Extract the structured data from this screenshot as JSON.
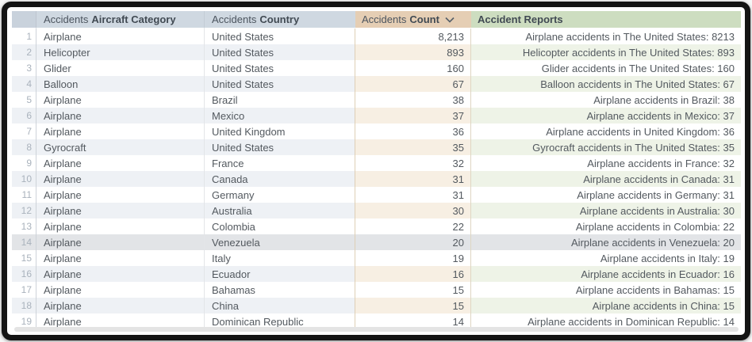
{
  "table": {
    "headers": {
      "rownum": {
        "label": ""
      },
      "category": {
        "prefix": "Accidents",
        "bold": "Aircraft Category"
      },
      "country": {
        "prefix": "Accidents",
        "bold": "Country"
      },
      "count": {
        "prefix": "Accidents",
        "bold": "Count",
        "sort": "descending"
      },
      "reports": {
        "bold": "Accident Reports"
      }
    },
    "highlighted_row_number": 14,
    "rows": [
      {
        "num": 1,
        "category": "Airplane",
        "country": "United States",
        "count": "8,213",
        "report": "Airplane accidents in The United States: 8213"
      },
      {
        "num": 2,
        "category": "Helicopter",
        "country": "United States",
        "count": "893",
        "report": "Helicopter accidents in The United States: 893"
      },
      {
        "num": 3,
        "category": "Glider",
        "country": "United States",
        "count": "160",
        "report": "Glider accidents in The United States: 160"
      },
      {
        "num": 4,
        "category": "Balloon",
        "country": "United States",
        "count": "67",
        "report": "Balloon accidents in The United States: 67"
      },
      {
        "num": 5,
        "category": "Airplane",
        "country": "Brazil",
        "count": "38",
        "report": "Airplane accidents in Brazil: 38"
      },
      {
        "num": 6,
        "category": "Airplane",
        "country": "Mexico",
        "count": "37",
        "report": "Airplane accidents in Mexico: 37"
      },
      {
        "num": 7,
        "category": "Airplane",
        "country": "United Kingdom",
        "count": "36",
        "report": "Airplane accidents in United Kingdom: 36"
      },
      {
        "num": 8,
        "category": "Gyrocraft",
        "country": "United States",
        "count": "35",
        "report": "Gyrocraft accidents in The United States: 35"
      },
      {
        "num": 9,
        "category": "Airplane",
        "country": "France",
        "count": "32",
        "report": "Airplane accidents in France: 32"
      },
      {
        "num": 10,
        "category": "Airplane",
        "country": "Canada",
        "count": "31",
        "report": "Airplane accidents in Canada: 31"
      },
      {
        "num": 11,
        "category": "Airplane",
        "country": "Germany",
        "count": "31",
        "report": "Airplane accidents in Germany: 31"
      },
      {
        "num": 12,
        "category": "Airplane",
        "country": "Australia",
        "count": "30",
        "report": "Airplane accidents in Australia: 30"
      },
      {
        "num": 13,
        "category": "Airplane",
        "country": "Colombia",
        "count": "22",
        "report": "Airplane accidents in Colombia: 22"
      },
      {
        "num": 14,
        "category": "Airplane",
        "country": "Venezuela",
        "count": "20",
        "report": "Airplane accidents in Venezuela: 20"
      },
      {
        "num": 15,
        "category": "Airplane",
        "country": "Italy",
        "count": "19",
        "report": "Airplane accidents in Italy: 19"
      },
      {
        "num": 16,
        "category": "Airplane",
        "country": "Ecuador",
        "count": "16",
        "report": "Airplane accidents in Ecuador: 16"
      },
      {
        "num": 17,
        "category": "Airplane",
        "country": "Bahamas",
        "count": "15",
        "report": "Airplane accidents in Bahamas: 15"
      },
      {
        "num": 18,
        "category": "Airplane",
        "country": "China",
        "count": "15",
        "report": "Airplane accidents in China: 15"
      },
      {
        "num": 19,
        "category": "Airplane",
        "country": "Dominican Republic",
        "count": "14",
        "report": "Airplane accidents in Dominican Republic: 14"
      }
    ]
  },
  "colors": {
    "header_number": "#c9d2dc",
    "header_default": "#cfd8e1",
    "header_count": "#e5ceb4",
    "header_reports": "#cdddc0",
    "header_text": "#4b545e",
    "header_text_bold": "#414a53",
    "body_text": "#53595f",
    "row_number_text": "#a9b2bc",
    "row_alt_default": "#eef1f5",
    "row_alt_count": "#f7efe3",
    "row_alt_reports": "#eef3e7",
    "row_highlight": "#e2e4e7"
  }
}
